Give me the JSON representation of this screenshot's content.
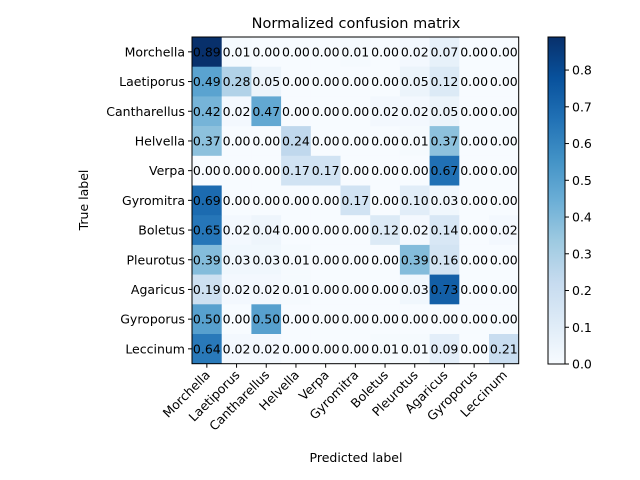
{
  "chart_data": {
    "type": "heatmap",
    "title": "Normalized confusion matrix",
    "xlabel": "Predicted label",
    "ylabel": "True label",
    "rows": [
      "Morchella",
      "Laetiporus",
      "Cantharellus",
      "Helvella",
      "Verpa",
      "Gyromitra",
      "Boletus",
      "Pleurotus",
      "Agaricus",
      "Gyroporus",
      "Leccinum"
    ],
    "cols": [
      "Morchella",
      "Laetiporus",
      "Cantharellus",
      "Helvella",
      "Verpa",
      "Gyromitra",
      "Boletus",
      "Pleurotus",
      "Agaricus",
      "Gyroporus",
      "Leccinum"
    ],
    "values": [
      [
        0.89,
        0.01,
        0.0,
        0.0,
        0.0,
        0.01,
        0.0,
        0.02,
        0.07,
        0.0,
        0.0
      ],
      [
        0.49,
        0.28,
        0.05,
        0.0,
        0.0,
        0.0,
        0.0,
        0.05,
        0.12,
        0.0,
        0.0
      ],
      [
        0.42,
        0.02,
        0.47,
        0.0,
        0.0,
        0.0,
        0.02,
        0.02,
        0.05,
        0.0,
        0.0
      ],
      [
        0.37,
        0.0,
        0.0,
        0.24,
        0.0,
        0.0,
        0.0,
        0.01,
        0.37,
        0.0,
        0.0
      ],
      [
        0.0,
        0.0,
        0.0,
        0.17,
        0.17,
        0.0,
        0.0,
        0.0,
        0.67,
        0.0,
        0.0
      ],
      [
        0.69,
        0.0,
        0.0,
        0.0,
        0.0,
        0.17,
        0.0,
        0.1,
        0.03,
        0.0,
        0.0
      ],
      [
        0.65,
        0.02,
        0.04,
        0.0,
        0.0,
        0.0,
        0.12,
        0.02,
        0.14,
        0.0,
        0.02
      ],
      [
        0.39,
        0.03,
        0.03,
        0.01,
        0.0,
        0.0,
        0.0,
        0.39,
        0.16,
        0.0,
        0.0
      ],
      [
        0.19,
        0.02,
        0.02,
        0.01,
        0.0,
        0.0,
        0.0,
        0.03,
        0.73,
        0.0,
        0.0
      ],
      [
        0.5,
        0.0,
        0.5,
        0.0,
        0.0,
        0.0,
        0.0,
        0.0,
        0.0,
        0.0,
        0.0
      ],
      [
        0.64,
        0.02,
        0.02,
        0.0,
        0.0,
        0.0,
        0.01,
        0.01,
        0.09,
        0.0,
        0.21
      ]
    ],
    "colormap": "Blues",
    "colorbar_range": [
      0,
      0.89
    ],
    "colorbar_ticks": [
      "0.0",
      "0.1",
      "0.2",
      "0.3",
      "0.4",
      "0.5",
      "0.6",
      "0.7",
      "0.8"
    ]
  }
}
